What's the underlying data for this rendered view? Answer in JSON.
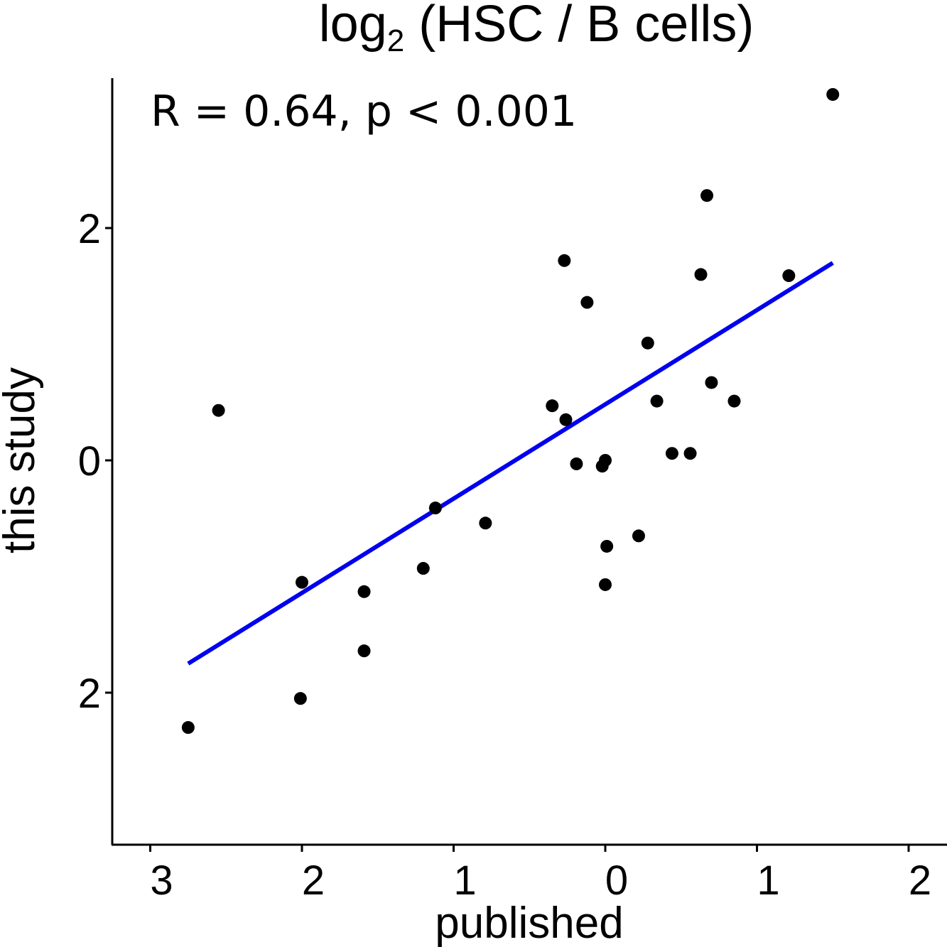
{
  "chart_data": {
    "type": "scatter",
    "title": {
      "prefix": "log",
      "subscript": "2",
      "suffix": " (HSC / B cells)"
    },
    "xlabel": "published",
    "ylabel": "this study",
    "annotation": "R  = 0.64, p < 0.001",
    "xlim": [
      -3.25,
      2.25
    ],
    "ylim": [
      -3.3,
      3.3
    ],
    "x_ticks": [
      {
        "value": -3,
        "label": "3"
      },
      {
        "value": -2,
        "label": "2"
      },
      {
        "value": -1,
        "label": "1"
      },
      {
        "value": 0,
        "label": "0"
      },
      {
        "value": 1,
        "label": "1"
      },
      {
        "value": 2,
        "label": "2"
      }
    ],
    "y_ticks": [
      {
        "value": 2,
        "label": "2"
      },
      {
        "value": 0,
        "label": "0"
      },
      {
        "value": -2,
        "label": "2"
      }
    ],
    "grid": false,
    "point_color": "#000000",
    "line_color": "#0000ee",
    "points": [
      {
        "x": -2.75,
        "y": -2.3
      },
      {
        "x": -2.55,
        "y": 0.43
      },
      {
        "x": -2.0,
        "y": -1.05
      },
      {
        "x": -2.01,
        "y": -2.05
      },
      {
        "x": -1.59,
        "y": -1.13
      },
      {
        "x": -1.59,
        "y": -1.64
      },
      {
        "x": -1.2,
        "y": -0.93
      },
      {
        "x": -1.12,
        "y": -0.41
      },
      {
        "x": -0.79,
        "y": -0.54
      },
      {
        "x": -0.35,
        "y": 0.47
      },
      {
        "x": -0.27,
        "y": 1.72
      },
      {
        "x": -0.26,
        "y": 0.35
      },
      {
        "x": -0.19,
        "y": -0.03
      },
      {
        "x": -0.12,
        "y": 1.36
      },
      {
        "x": -0.02,
        "y": -0.05
      },
      {
        "x": 0.0,
        "y": 0.0
      },
      {
        "x": 0.01,
        "y": -0.74
      },
      {
        "x": 0.0,
        "y": -1.07
      },
      {
        "x": 0.22,
        "y": -0.65
      },
      {
        "x": 0.28,
        "y": 1.01
      },
      {
        "x": 0.34,
        "y": 0.51
      },
      {
        "x": 0.44,
        "y": 0.06
      },
      {
        "x": 0.56,
        "y": 0.06
      },
      {
        "x": 0.63,
        "y": 1.6
      },
      {
        "x": 0.67,
        "y": 2.28
      },
      {
        "x": 0.7,
        "y": 0.67
      },
      {
        "x": 0.85,
        "y": 0.51
      },
      {
        "x": 1.21,
        "y": 1.59
      },
      {
        "x": 1.5,
        "y": 3.15
      }
    ],
    "fit_line": {
      "x": [
        -2.75,
        1.5
      ],
      "y": [
        -1.75,
        1.7
      ]
    }
  }
}
